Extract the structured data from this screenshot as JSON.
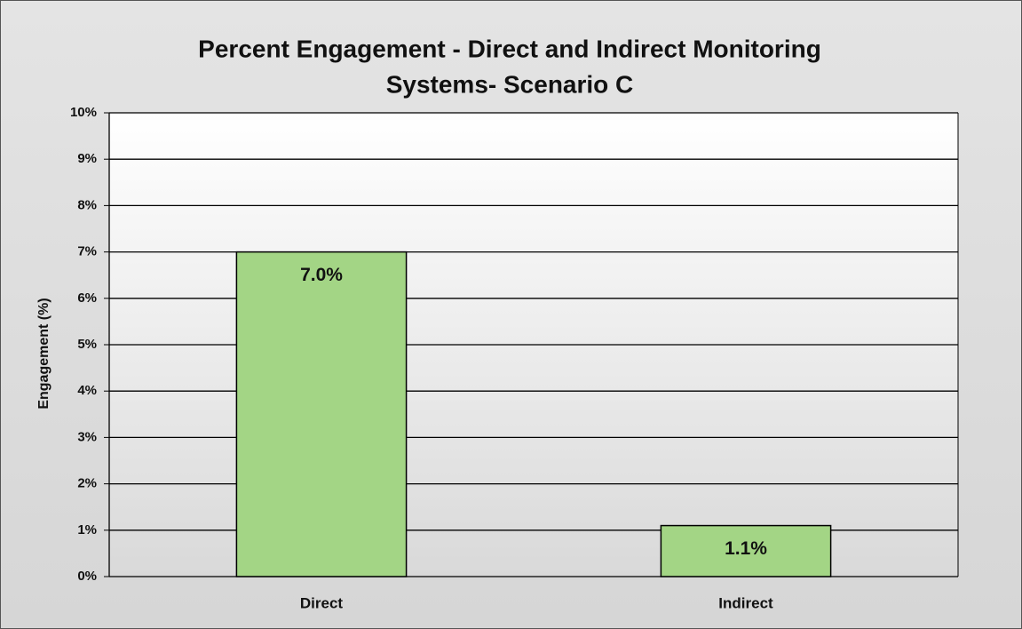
{
  "chart_data": {
    "type": "bar",
    "title": [
      "Percent Engagement - Direct and Indirect Monitoring",
      "Systems- Scenario C"
    ],
    "y_label": "Engagement (%)",
    "categories": [
      "Direct",
      "Indirect"
    ],
    "values": [
      7.0,
      1.1
    ],
    "value_labels": [
      "7.0%",
      "1.1%"
    ],
    "color": "#a3d585",
    "ylim": [
      0,
      10
    ],
    "yticks": [
      {
        "value": 0,
        "label": "0%"
      },
      {
        "value": 1,
        "label": "1%"
      },
      {
        "value": 2,
        "label": "2%"
      },
      {
        "value": 3,
        "label": "3%"
      },
      {
        "value": 4,
        "label": "4%"
      },
      {
        "value": 5,
        "label": "5%"
      },
      {
        "value": 6,
        "label": "6%"
      },
      {
        "value": 7,
        "label": "7%"
      },
      {
        "value": 8,
        "label": "8%"
      },
      {
        "value": 9,
        "label": "9%"
      },
      {
        "value": 10,
        "label": "10%"
      }
    ],
    "grid": true
  }
}
